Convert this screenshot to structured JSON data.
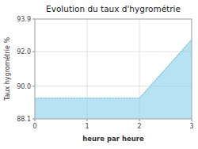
{
  "chart_data": {
    "type": "area",
    "title": "Evolution du taux d'hygrométrie",
    "xlabel": "heure par heure",
    "ylabel": "Taux hygrométrie %",
    "x": [
      0,
      2,
      3
    ],
    "values": [
      89.3,
      89.3,
      92.7
    ],
    "xlim": [
      0,
      3
    ],
    "ylim": [
      88.1,
      93.9
    ],
    "xticks": [
      0,
      1,
      2,
      3
    ],
    "yticks": [
      88.1,
      {
        "value": 90,
        "label": "90.0"
      },
      {
        "value": 92,
        "label": "92.0"
      },
      93.9
    ],
    "color": "#87ceeb",
    "line_style": "dotted",
    "grid": true
  }
}
